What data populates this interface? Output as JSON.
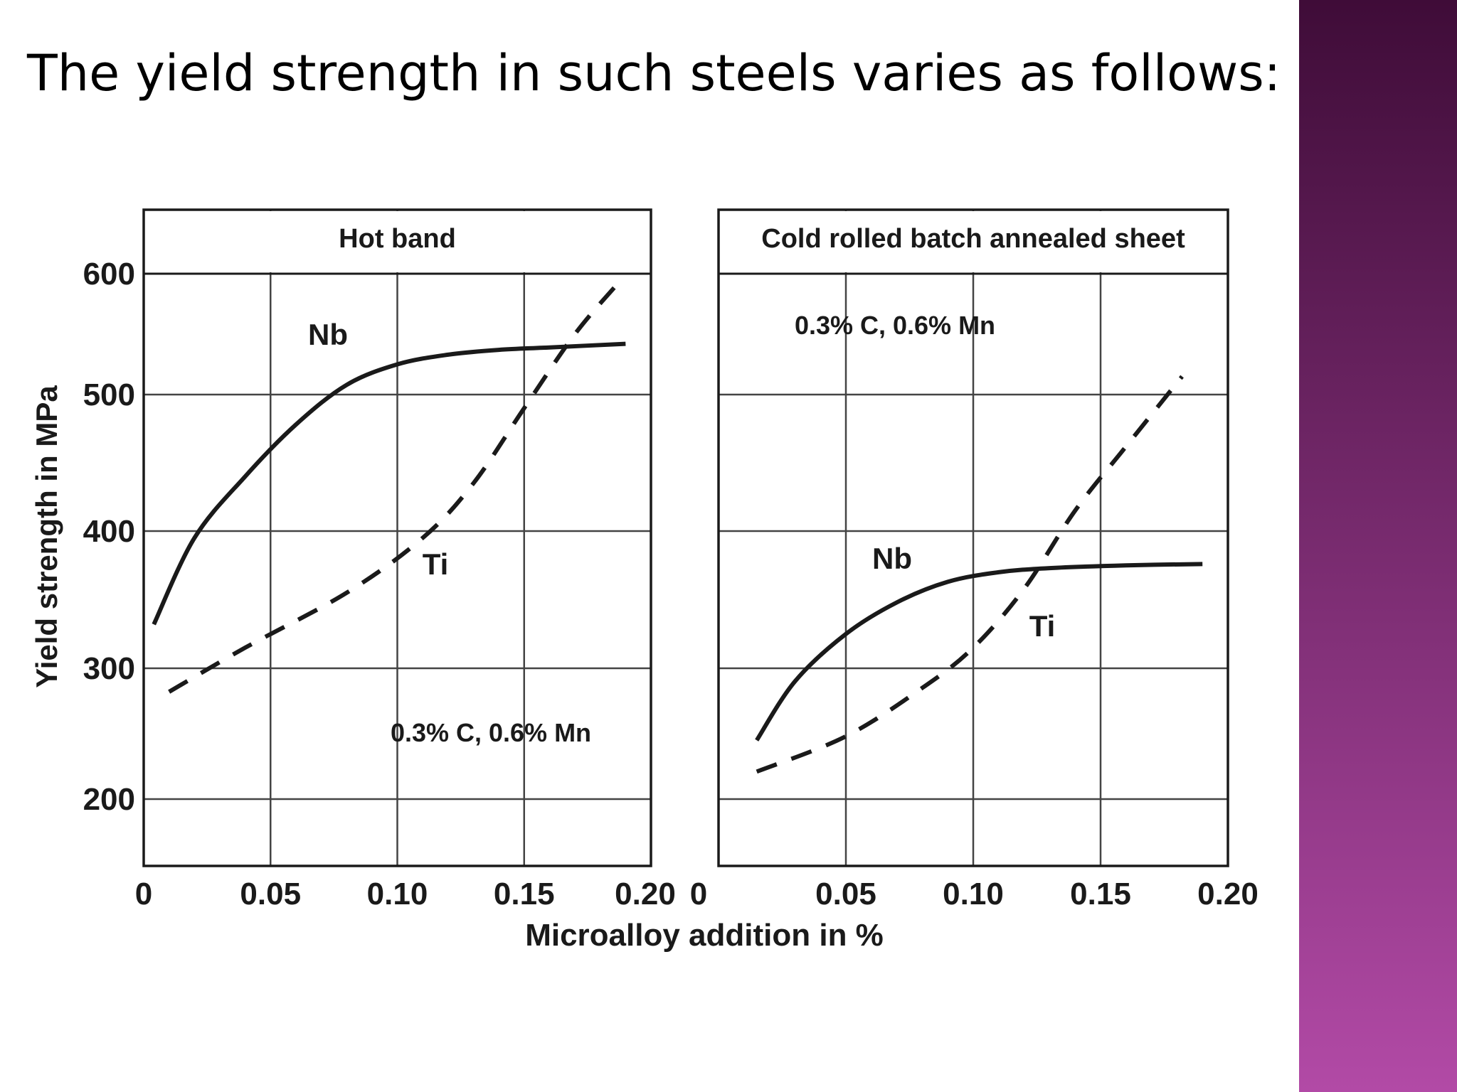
{
  "slide": {
    "title": "The yield strength in such steels varies as follows:"
  },
  "theme": {
    "band_top_color": "#3f0c38",
    "band_bottom_color": "#b24aa6",
    "ink": "#1a1a1a"
  },
  "chart_data": {
    "type": "line",
    "xlabel": "Microalloy addition in %",
    "ylabel": "Yield strength in MPa",
    "xticks": [
      "0",
      "0.05",
      "0.10",
      "0.15",
      "0.20"
    ],
    "yticks": [
      "200",
      "300",
      "400",
      "500",
      "600"
    ],
    "xlim": [
      0,
      0.2
    ],
    "ylim": [
      150,
      650
    ],
    "grid": true,
    "panels": [
      {
        "title": "Hot band",
        "annotation": "0.3% C, 0.6% Mn",
        "series": [
          {
            "name": "Nb",
            "style": "solid",
            "x": [
              0.004,
              0.02,
              0.04,
              0.06,
              0.08,
              0.1,
              0.12,
              0.14,
              0.16,
              0.19
            ],
            "y": [
              332,
              395,
              440,
              478,
              508,
              525,
              533,
              537,
              539,
              542
            ]
          },
          {
            "name": "Ti",
            "style": "dashed",
            "x": [
              0.01,
              0.04,
              0.08,
              0.11,
              0.13,
              0.15,
              0.17,
              0.187
            ],
            "y": [
              282,
              315,
              355,
              395,
              435,
              490,
              550,
              592
            ]
          }
        ]
      },
      {
        "title": "Cold rolled batch annealed sheet",
        "annotation": "0.3% C, 0.6% Mn",
        "series": [
          {
            "name": "Nb",
            "style": "solid",
            "x": [
              0.015,
              0.03,
              0.05,
              0.07,
              0.09,
              0.11,
              0.13,
              0.16,
              0.19
            ],
            "y": [
              245,
              290,
              325,
              348,
              363,
              370,
              373,
              375,
              376
            ]
          },
          {
            "name": "Ti",
            "style": "dashed",
            "x": [
              0.015,
              0.05,
              0.08,
              0.1,
              0.12,
              0.14,
              0.16,
              0.182
            ],
            "y": [
              221,
              248,
              285,
              315,
              358,
              415,
              462,
              515
            ]
          }
        ]
      }
    ]
  }
}
